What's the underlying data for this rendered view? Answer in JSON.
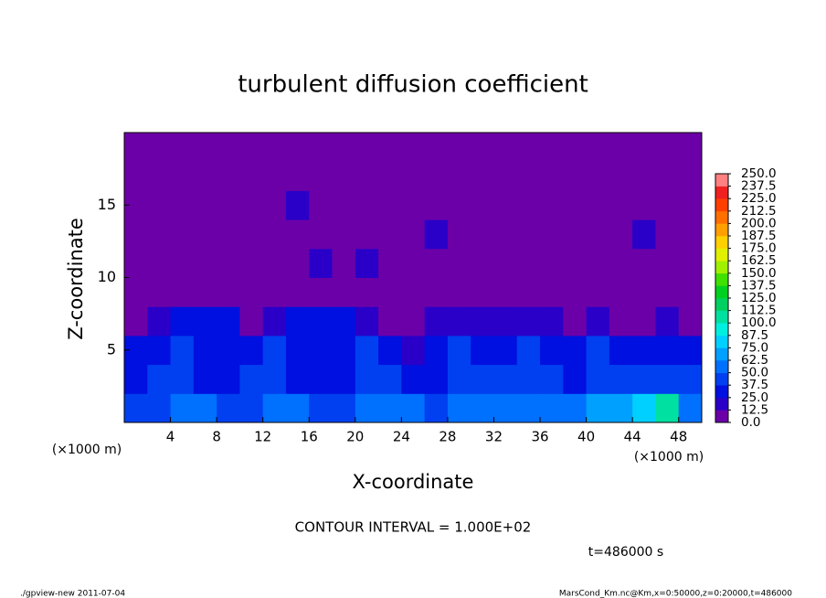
{
  "chart_data": {
    "type": "heatmap",
    "title": "turbulent diffusion coefficient",
    "xlabel": "X-coordinate",
    "ylabel": "Z-coordinate",
    "x_unit": "(×1000 m)",
    "y_unit": "(×1000 m)",
    "annotation": "CONTOUR INTERVAL = 1.000E+02",
    "time_label": "t=486000 s",
    "footer_left": "./gpview-new   2011-07-04",
    "footer_right": "MarsCond_Km.nc@Km,x=0:50000,z=0:20000,t=486000",
    "xlim": [
      0,
      50
    ],
    "ylim": [
      0,
      20
    ],
    "xticks": [
      4,
      8,
      12,
      16,
      20,
      24,
      28,
      32,
      36,
      40,
      44,
      48
    ],
    "yticks": [
      5,
      10,
      15
    ],
    "x_edges": [
      0,
      2,
      4,
      6,
      8,
      10,
      12,
      14,
      16,
      18,
      20,
      22,
      24,
      26,
      28,
      30,
      32,
      34,
      36,
      38,
      40,
      42,
      44,
      46,
      48,
      50
    ],
    "z_edges": [
      0,
      2,
      4,
      6,
      8,
      10,
      12,
      14,
      16,
      18,
      20
    ],
    "values": [
      [
        45,
        48,
        50,
        50,
        48,
        45,
        50,
        52,
        48,
        45,
        50,
        52,
        50,
        48,
        55,
        60,
        55,
        50,
        55,
        60,
        65,
        70,
        75,
        110,
        60
      ],
      [
        35,
        38,
        40,
        35,
        30,
        38,
        40,
        35,
        30,
        35,
        40,
        38,
        30,
        35,
        45,
        40,
        38,
        42,
        40,
        35,
        45,
        40,
        38,
        42,
        40
      ],
      [
        30,
        35,
        38,
        30,
        25,
        35,
        38,
        30,
        25,
        35,
        38,
        35,
        20,
        30,
        40,
        35,
        30,
        38,
        35,
        30,
        38,
        35,
        30,
        35,
        35
      ],
      [
        8,
        20,
        25,
        30,
        25,
        10,
        22,
        25,
        28,
        25,
        20,
        8,
        10,
        15,
        20,
        18,
        15,
        20,
        15,
        12,
        15,
        10,
        12,
        15,
        12
      ],
      [
        2,
        2,
        3,
        5,
        3,
        2,
        2,
        4,
        6,
        8,
        5,
        2,
        2,
        2,
        2,
        2,
        2,
        2,
        2,
        2,
        2,
        2,
        2,
        2,
        2
      ],
      [
        3,
        2,
        4,
        3,
        2,
        3,
        2,
        3,
        14,
        3,
        14,
        2,
        3,
        2,
        4,
        2,
        3,
        4,
        2,
        3,
        2,
        4,
        3,
        2,
        2
      ],
      [
        2,
        4,
        3,
        2,
        3,
        2,
        2,
        3,
        4,
        2,
        3,
        2,
        3,
        14,
        2,
        3,
        2,
        2,
        3,
        2,
        4,
        3,
        14,
        3,
        2
      ],
      [
        2,
        3,
        2,
        2,
        3,
        4,
        2,
        14,
        3,
        2,
        2,
        3,
        2,
        2,
        3,
        2,
        2,
        3,
        2,
        2,
        3,
        2,
        2,
        2,
        2
      ],
      [
        2,
        2,
        2,
        2,
        2,
        2,
        2,
        2,
        2,
        2,
        2,
        2,
        2,
        2,
        2,
        2,
        2,
        2,
        2,
        2,
        2,
        2,
        2,
        2,
        2
      ],
      [
        2,
        2,
        2,
        2,
        2,
        2,
        2,
        2,
        2,
        2,
        2,
        2,
        2,
        2,
        2,
        2,
        2,
        2,
        2,
        2,
        2,
        2,
        2,
        2,
        2
      ]
    ],
    "levels": [
      {
        "value": 0,
        "label": "0.0"
      },
      12.5,
      {
        "value": 25,
        "label": "25.0"
      },
      37.5,
      {
        "value": 50,
        "label": "50.0"
      },
      62.5,
      {
        "value": 75,
        "label": "75.0"
      },
      87.5,
      {
        "value": 100,
        "label": "100.0"
      },
      112.5,
      {
        "value": 125,
        "label": "125.0"
      },
      137.5,
      {
        "value": 150,
        "label": "150.0"
      },
      162.5,
      {
        "value": 175,
        "label": "175.0"
      },
      187.5,
      {
        "value": 200,
        "label": "200.0"
      },
      212.5,
      {
        "value": 225,
        "label": "225.0"
      },
      237.5,
      {
        "value": 250,
        "label": "250.0"
      }
    ],
    "colors": [
      "#6c00a8",
      "#2a00c8",
      "#0010e0",
      "#0040f0",
      "#0070ff",
      "#00a0ff",
      "#00d0ff",
      "#00f0e0",
      "#00e0a0",
      "#00d060",
      "#00d020",
      "#40e000",
      "#a0f000",
      "#e0f000",
      "#ffd000",
      "#ffa000",
      "#ff7000",
      "#ff4000",
      "#f02020",
      "#ff8080"
    ]
  }
}
